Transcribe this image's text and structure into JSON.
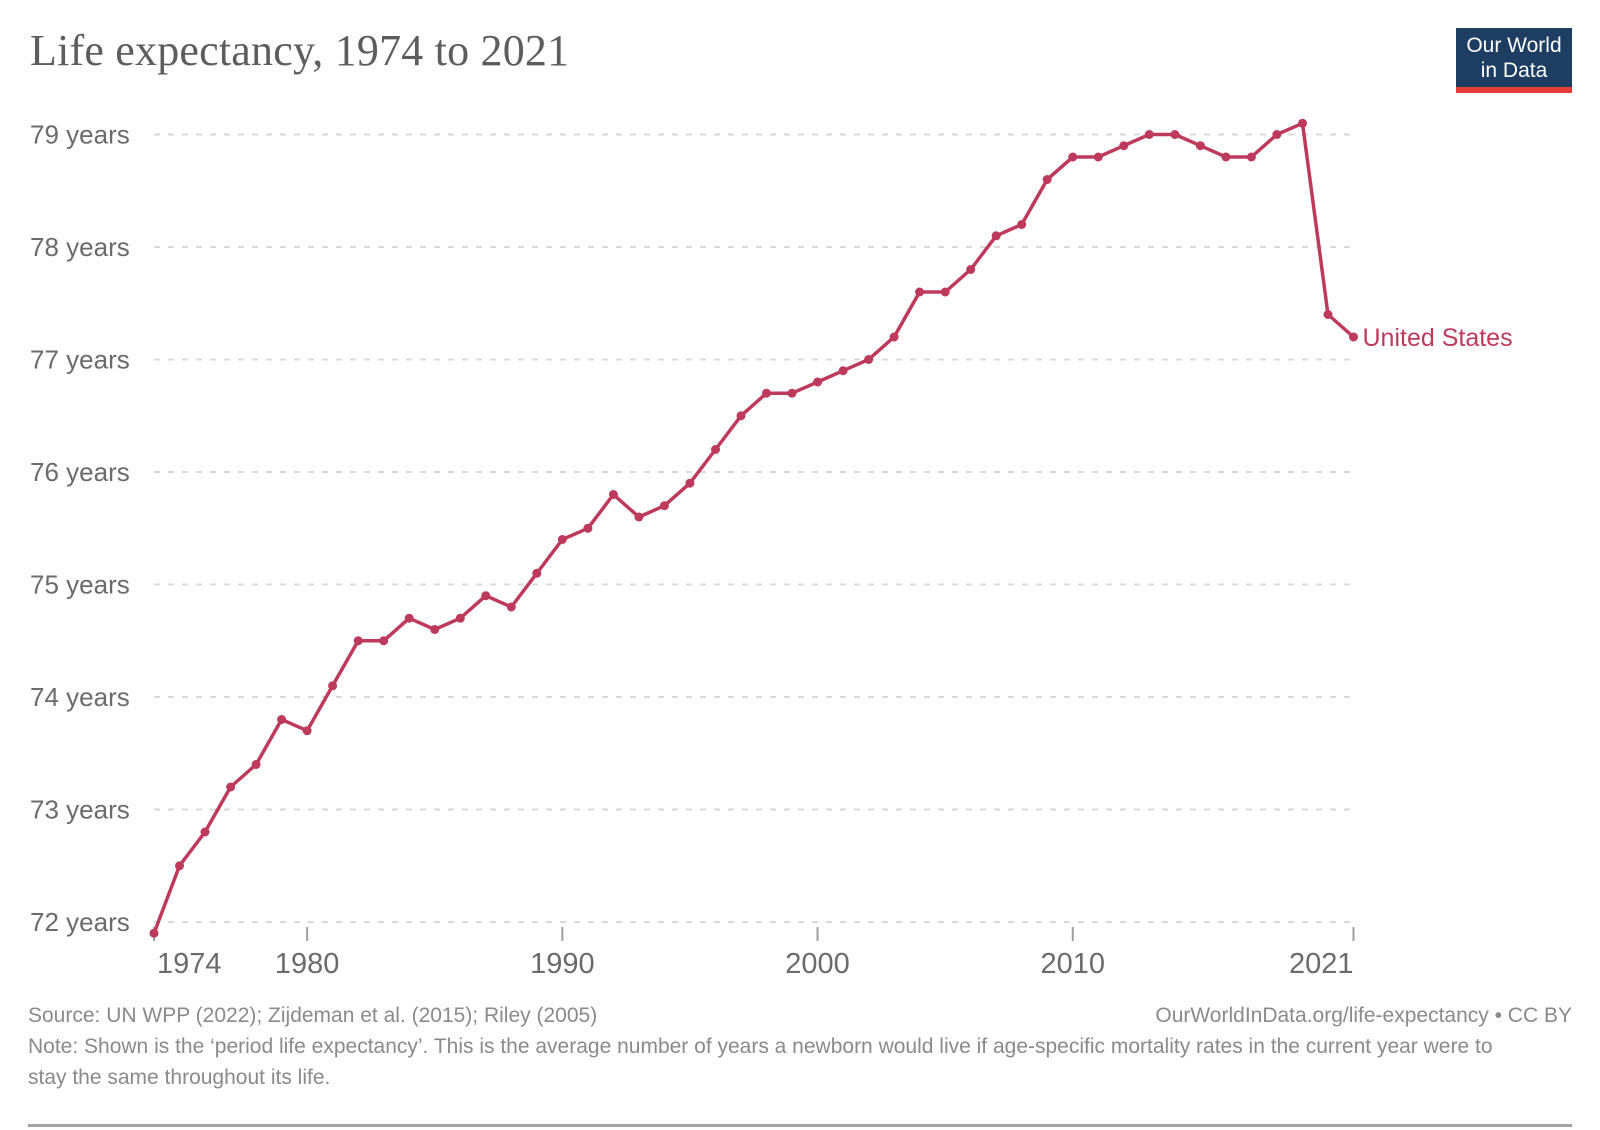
{
  "header": {
    "title": "Life expectancy, 1974 to 2021",
    "logo": {
      "line1": "Our World",
      "line2": "in Data",
      "bg_color": "#1d3d63",
      "stripe_color": "#e63e36"
    }
  },
  "chart_data": {
    "type": "line",
    "title": "Life expectancy, 1974 to 2021",
    "x": [
      1974,
      1975,
      1976,
      1977,
      1978,
      1979,
      1980,
      1981,
      1982,
      1983,
      1984,
      1985,
      1986,
      1987,
      1988,
      1989,
      1990,
      1991,
      1992,
      1993,
      1994,
      1995,
      1996,
      1997,
      1998,
      1999,
      2000,
      2001,
      2002,
      2003,
      2004,
      2005,
      2006,
      2007,
      2008,
      2009,
      2010,
      2011,
      2012,
      2013,
      2014,
      2015,
      2016,
      2017,
      2018,
      2019,
      2020,
      2021
    ],
    "series": [
      {
        "name": "United States",
        "color": "#be3a5c",
        "values": [
          71.9,
          72.5,
          72.8,
          73.2,
          73.4,
          73.8,
          73.7,
          74.1,
          74.5,
          74.5,
          74.7,
          74.6,
          74.7,
          74.9,
          74.8,
          75.1,
          75.4,
          75.5,
          75.8,
          75.6,
          75.7,
          75.9,
          76.2,
          76.5,
          76.7,
          76.7,
          76.8,
          76.9,
          77.0,
          77.2,
          77.6,
          77.6,
          77.8,
          78.1,
          78.2,
          78.6,
          78.8,
          78.8,
          78.9,
          79.0,
          79.0,
          78.9,
          78.8,
          78.8,
          79.0,
          79.1,
          77.4,
          77.2
        ]
      }
    ],
    "end_label": "United States",
    "xlabel": "",
    "ylabel": "",
    "ylim": [
      71.9,
      79.1
    ],
    "yticks": [
      {
        "value": 72,
        "label": "72 years"
      },
      {
        "value": 73,
        "label": "73 years"
      },
      {
        "value": 74,
        "label": "74 years"
      },
      {
        "value": 75,
        "label": "75 years"
      },
      {
        "value": 76,
        "label": "76 years"
      },
      {
        "value": 77,
        "label": "77 years"
      },
      {
        "value": 78,
        "label": "78 years"
      },
      {
        "value": 79,
        "label": "79 years"
      }
    ],
    "xticks": [
      {
        "value": 1974,
        "label": "1974"
      },
      {
        "value": 1980,
        "label": "1980"
      },
      {
        "value": 1990,
        "label": "1990"
      },
      {
        "value": 2000,
        "label": "2000"
      },
      {
        "value": 2010,
        "label": "2010"
      },
      {
        "value": 2021,
        "label": "2021"
      }
    ],
    "grid": "horizontal-dashed",
    "legend_position": "end-of-line",
    "colors": {
      "gridline": "#d9d9d9",
      "tick": "#a0a0a0",
      "tick_label": "#6b6b6b"
    }
  },
  "footer": {
    "source": "Source: UN WPP (2022); Zijdeman et al. (2015); Riley (2005)",
    "attribution": "OurWorldInData.org/life-expectancy • CC BY",
    "note": "Note: Shown is the ‘period life expectancy’. This is the average number of years a newborn would live if age-specific mortality rates in the current year were to stay the same throughout its life."
  }
}
